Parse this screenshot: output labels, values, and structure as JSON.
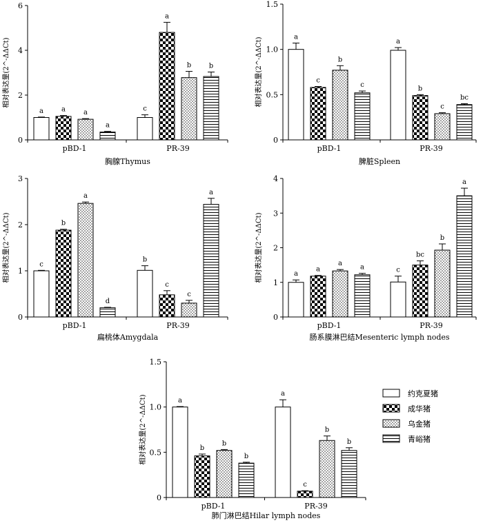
{
  "figure": {
    "legend": [
      "约克夏猪",
      "成华猪",
      "乌金猪",
      "青峪猪"
    ]
  },
  "chart_data": [
    {
      "type": "bar",
      "title": "胸腺Thymus",
      "ylabel": "相对表达量(2^-ΔΔCt)",
      "ylim": [
        0,
        6
      ],
      "yticks": [
        "0",
        "2",
        "4",
        "6"
      ],
      "categories": [
        "pBD-1",
        "PR-39"
      ],
      "series": [
        {
          "name": "约克夏猪",
          "values": [
            1.0,
            1.0
          ],
          "errors": [
            0.02,
            0.12
          ],
          "letters": [
            "a",
            "c"
          ]
        },
        {
          "name": "成华猪",
          "values": [
            1.05,
            4.8
          ],
          "errors": [
            0.04,
            0.45
          ],
          "letters": [
            "a",
            "a"
          ]
        },
        {
          "name": "乌金猪",
          "values": [
            0.92,
            2.78
          ],
          "errors": [
            0.03,
            0.28
          ],
          "letters": [
            "a",
            "b"
          ]
        },
        {
          "name": "青峪猪",
          "values": [
            0.35,
            2.83
          ],
          "errors": [
            0.03,
            0.2
          ],
          "letters": [
            "a",
            "b"
          ]
        }
      ]
    },
    {
      "type": "bar",
      "title": "脾脏Spleen",
      "ylabel": "相对表达量(2^-ΔΔCt)",
      "ylim": [
        0,
        1.5
      ],
      "yticks": [
        "0",
        "0.5",
        "1.0",
        "1.5"
      ],
      "categories": [
        "pBD-1",
        "PR-39"
      ],
      "series": [
        {
          "name": "约克夏猪",
          "values": [
            1.0,
            0.99
          ],
          "errors": [
            0.07,
            0.03
          ],
          "letters": [
            "a",
            "a"
          ]
        },
        {
          "name": "成华猪",
          "values": [
            0.58,
            0.49
          ],
          "errors": [
            0.01,
            0.01
          ],
          "letters": [
            "c",
            "b"
          ]
        },
        {
          "name": "乌金猪",
          "values": [
            0.77,
            0.29
          ],
          "errors": [
            0.05,
            0.01
          ],
          "letters": [
            "b",
            "c"
          ]
        },
        {
          "name": "青峪猪",
          "values": [
            0.52,
            0.39
          ],
          "errors": [
            0.02,
            0.01
          ],
          "letters": [
            "c",
            "bc"
          ]
        }
      ]
    },
    {
      "type": "bar",
      "title": "扁桃体Amygdala",
      "ylabel": "相对表达量(2^-ΔΔCt)",
      "ylim": [
        0,
        3
      ],
      "yticks": [
        "0",
        "1",
        "2",
        "3"
      ],
      "categories": [
        "pBD-1",
        "PR-39"
      ],
      "series": [
        {
          "name": "约克夏猪",
          "values": [
            1.0,
            1.01
          ],
          "errors": [
            0.01,
            0.1
          ],
          "letters": [
            "c",
            "b"
          ]
        },
        {
          "name": "成华猪",
          "values": [
            1.88,
            0.48
          ],
          "errors": [
            0.02,
            0.09
          ],
          "letters": [
            "b",
            "c"
          ]
        },
        {
          "name": "乌金猪",
          "values": [
            2.46,
            0.3
          ],
          "errors": [
            0.03,
            0.06
          ],
          "letters": [
            "a",
            "c"
          ]
        },
        {
          "name": "青峪猪",
          "values": [
            0.2,
            2.44
          ],
          "errors": [
            0.01,
            0.13
          ],
          "letters": [
            "d",
            "a"
          ]
        }
      ]
    },
    {
      "type": "bar",
      "title": "肠系膜淋巴结Mesenteric lymph nodes",
      "ylabel": "相对表达量(2^-ΔΔCt)",
      "ylim": [
        0,
        4
      ],
      "yticks": [
        "0",
        "1",
        "2",
        "3",
        "4"
      ],
      "categories": [
        "pBD-1",
        "PR-39"
      ],
      "series": [
        {
          "name": "约克夏猪",
          "values": [
            1.0,
            1.01
          ],
          "errors": [
            0.07,
            0.17
          ],
          "letters": [
            "a",
            "c"
          ]
        },
        {
          "name": "成华猪",
          "values": [
            1.18,
            1.5
          ],
          "errors": [
            0.02,
            0.12
          ],
          "letters": [
            "a",
            "bc"
          ]
        },
        {
          "name": "乌金猪",
          "values": [
            1.33,
            1.93
          ],
          "errors": [
            0.04,
            0.18
          ],
          "letters": [
            "a",
            "b"
          ]
        },
        {
          "name": "青峪猪",
          "values": [
            1.22,
            3.5
          ],
          "errors": [
            0.04,
            0.22
          ],
          "letters": [
            "a",
            "a"
          ]
        }
      ]
    },
    {
      "type": "bar",
      "title": "肺门淋巴结Hilar lymph nodes",
      "ylabel": "相对表达量(2^-ΔΔCt)",
      "ylim": [
        0,
        1.5
      ],
      "yticks": [
        "0",
        "0.5",
        "1.0",
        "1.5"
      ],
      "categories": [
        "pBD-1",
        "PR-39"
      ],
      "series": [
        {
          "name": "约克夏猪",
          "values": [
            1.0,
            1.0
          ],
          "errors": [
            0.005,
            0.08
          ],
          "letters": [
            "a",
            "a"
          ]
        },
        {
          "name": "成华猪",
          "values": [
            0.46,
            0.07
          ],
          "errors": [
            0.02,
            0.005
          ],
          "letters": [
            "b",
            "c"
          ]
        },
        {
          "name": "乌金猪",
          "values": [
            0.52,
            0.63
          ],
          "errors": [
            0.01,
            0.05
          ],
          "letters": [
            "b",
            "b"
          ]
        },
        {
          "name": "青峪猪",
          "values": [
            0.38,
            0.52
          ],
          "errors": [
            0.01,
            0.03
          ],
          "letters": [
            "b",
            "b"
          ]
        }
      ]
    }
  ]
}
